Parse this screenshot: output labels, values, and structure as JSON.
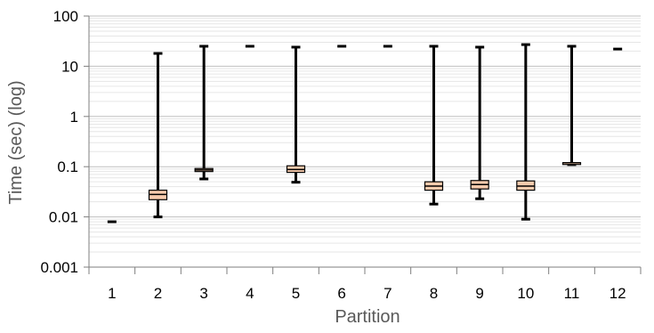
{
  "chart_data": {
    "type": "box",
    "title": "",
    "xlabel": "Partition",
    "ylabel": "Time (sec) (log)",
    "yscale": "log",
    "ylim": [
      0.001,
      100
    ],
    "y_ticks": [
      "0.001",
      "0.01",
      "0.1",
      "1",
      "10",
      "100"
    ],
    "grid": true,
    "minor_grid": true,
    "colors": {
      "box_fill": "#f8cbad",
      "box_stroke": "#000000",
      "whisker": "#000000",
      "major_grid": "#bfbfbf",
      "minor_grid": "#e6e6e6"
    },
    "categories": [
      "1",
      "2",
      "3",
      "4",
      "5",
      "6",
      "7",
      "8",
      "9",
      "10",
      "11",
      "12"
    ],
    "boxes": [
      {
        "category": "1",
        "min": 0.008,
        "q1": 0.008,
        "median": 0.008,
        "q3": 0.008,
        "max": 0.008
      },
      {
        "category": "2",
        "min": 0.01,
        "q1": 0.022,
        "median": 0.028,
        "q3": 0.034,
        "max": 18
      },
      {
        "category": "3",
        "min": 0.057,
        "q1": 0.08,
        "median": 0.086,
        "q3": 0.092,
        "max": 25
      },
      {
        "category": "4",
        "min": 25,
        "q1": 25,
        "median": 25,
        "q3": 25,
        "max": 25
      },
      {
        "category": "5",
        "min": 0.049,
        "q1": 0.077,
        "median": 0.088,
        "q3": 0.104,
        "max": 24
      },
      {
        "category": "6",
        "min": 25,
        "q1": 25,
        "median": 25,
        "q3": 25,
        "max": 25
      },
      {
        "category": "7",
        "min": 25,
        "q1": 25,
        "median": 25,
        "q3": 25,
        "max": 25
      },
      {
        "category": "8",
        "min": 0.018,
        "q1": 0.034,
        "median": 0.041,
        "q3": 0.05,
        "max": 25
      },
      {
        "category": "9",
        "min": 0.023,
        "q1": 0.036,
        "median": 0.044,
        "q3": 0.053,
        "max": 24
      },
      {
        "category": "10",
        "min": 0.009,
        "q1": 0.034,
        "median": 0.041,
        "q3": 0.052,
        "max": 27
      },
      {
        "category": "11",
        "min": 0.11,
        "q1": 0.12,
        "median": 0.12,
        "q3": 0.12,
        "max": 25
      },
      {
        "category": "12",
        "min": 22,
        "q1": 22,
        "median": 22,
        "q3": 22,
        "max": 22
      }
    ]
  }
}
